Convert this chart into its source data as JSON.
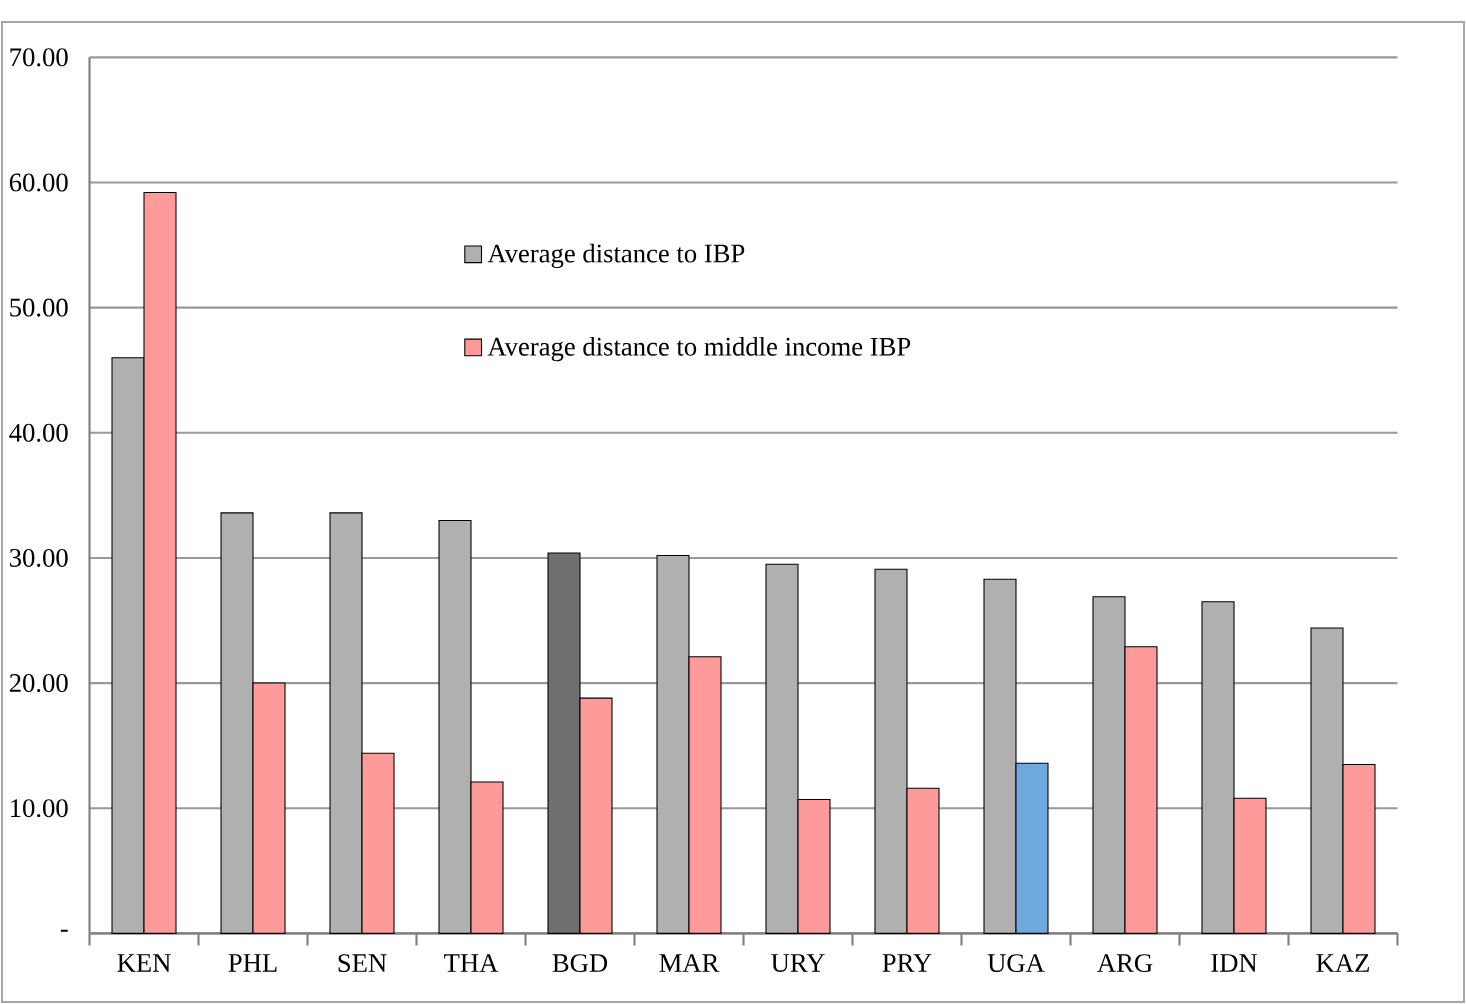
{
  "chart_data": {
    "type": "bar",
    "categories": [
      "KEN",
      "PHL",
      "SEN",
      "THA",
      "BGD",
      "MAR",
      "URY",
      "PRY",
      "UGA",
      "ARG",
      "IDN",
      "KAZ"
    ],
    "series": [
      {
        "name": "Average distance to IBP",
        "color": "#b0b0b0",
        "colors": [
          "#b0b0b0",
          "#b0b0b0",
          "#b0b0b0",
          "#b0b0b0",
          "#707070",
          "#b0b0b0",
          "#b0b0b0",
          "#b0b0b0",
          "#b0b0b0",
          "#b0b0b0",
          "#b0b0b0",
          "#b0b0b0"
        ],
        "values": [
          46.0,
          33.6,
          33.6,
          33.0,
          30.4,
          30.2,
          29.5,
          29.1,
          28.3,
          26.9,
          26.5,
          24.4
        ]
      },
      {
        "name": "Average distance to middle income IBP",
        "color": "#ff9a9a",
        "colors": [
          "#ff9a9a",
          "#ff9a9a",
          "#ff9a9a",
          "#ff9a9a",
          "#ff9a9a",
          "#ff9a9a",
          "#ff9a9a",
          "#ff9a9a",
          "#6fa8dc",
          "#ff9a9a",
          "#ff9a9a",
          "#ff9a9a"
        ],
        "values": [
          59.2,
          20.0,
          14.4,
          12.1,
          18.8,
          22.1,
          10.7,
          11.6,
          13.6,
          22.9,
          10.8,
          13.5
        ]
      }
    ],
    "ylim": [
      0,
      70
    ],
    "yticks": [
      {
        "value": 0,
        "label": "-"
      },
      {
        "value": 10,
        "label": "10.00"
      },
      {
        "value": 20,
        "label": "20.00"
      },
      {
        "value": 30,
        "label": "30.00"
      },
      {
        "value": 40,
        "label": "40.00"
      },
      {
        "value": 50,
        "label": "50.00"
      },
      {
        "value": 60,
        "label": "60.00"
      },
      {
        "value": 70,
        "label": "70.00"
      }
    ],
    "grid": "y",
    "legend": "top"
  }
}
